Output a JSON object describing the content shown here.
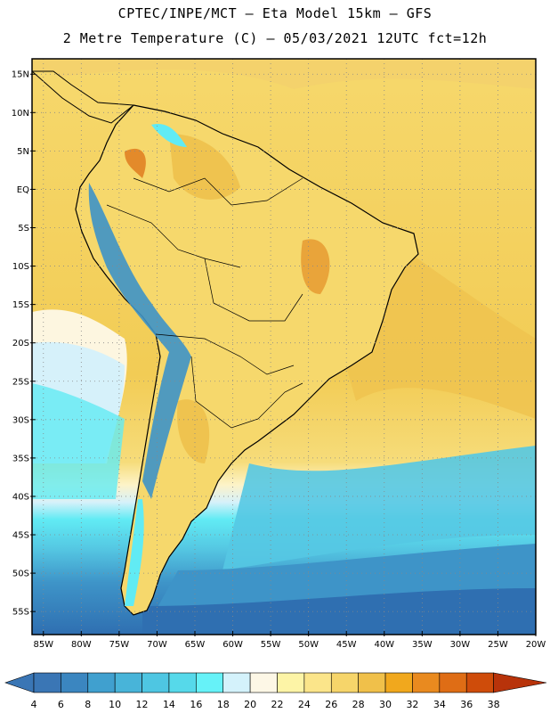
{
  "header": {
    "line1": "CPTEC/INPE/MCT –  Eta Model 15km – GFS",
    "line2": "2 Metre Temperature (C) – 05/03/2021 12UTC fct=12h"
  },
  "map": {
    "latitude_labels": [
      "15N",
      "10N",
      "5N",
      "EQ",
      "5S",
      "10S",
      "15S",
      "20S",
      "25S",
      "30S",
      "35S",
      "40S",
      "45S",
      "50S",
      "55S"
    ],
    "longitude_labels": [
      "85W",
      "80W",
      "75W",
      "70W",
      "65W",
      "60W",
      "55W",
      "50W",
      "45W",
      "40W",
      "35W",
      "30W",
      "25W",
      "20W"
    ],
    "grid": true
  },
  "colorbar": {
    "labels": [
      "4",
      "6",
      "8",
      "10",
      "12",
      "14",
      "16",
      "18",
      "20",
      "22",
      "24",
      "26",
      "28",
      "30",
      "32",
      "34",
      "36",
      "38"
    ],
    "colors": [
      "#3a76b5",
      "#3b86c0",
      "#40a0cf",
      "#48b4d9",
      "#4ec6e2",
      "#56d9ea",
      "#66f2f8",
      "#d4f2fb",
      "#fdf7e6",
      "#fdf4a6",
      "#fbe58a",
      "#f6d56a",
      "#f0c04a",
      "#f1a81d",
      "#e98a1f",
      "#df6d15",
      "#cf4c0a",
      "#b8330a"
    ]
  },
  "legend_colors": {
    "ocean_deep": "#2f6fb1",
    "ocean_mid": "#3e94c8",
    "ocean_light": "#55c8e3",
    "cyan": "#61ebf4",
    "pale": "#d6f1fa",
    "cream": "#fdf6e0",
    "land_yellow": "#f6d86c",
    "land_gold": "#efc34f",
    "hot": "#e38a2a"
  }
}
